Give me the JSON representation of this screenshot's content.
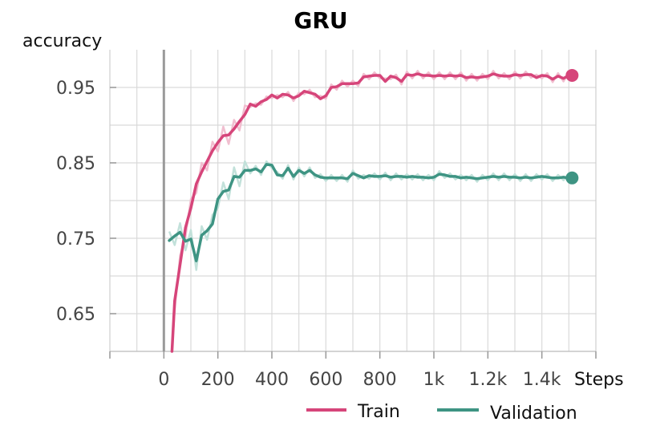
{
  "chart_data": {
    "type": "line",
    "title": "GRU",
    "xlabel": "Steps",
    "ylabel": "accuracy",
    "xlim": [
      -200,
      1600
    ],
    "ylim": [
      0.6,
      1.0
    ],
    "xticks": [
      0,
      200,
      400,
      600,
      800,
      1000,
      1200,
      1400
    ],
    "xtick_labels": [
      "0",
      "200",
      "400",
      "600",
      "800",
      "1k",
      "1.2k",
      "1.4k"
    ],
    "yticks": [
      0.65,
      0.75,
      0.85,
      0.95
    ],
    "ytick_labels": [
      "0.65",
      "0.75",
      "0.85",
      "0.95"
    ],
    "grid": true,
    "legend_position": "bottom",
    "series": [
      {
        "name": "Train",
        "color": "#d6457a",
        "raw_color": "#f1bfd0",
        "x": [
          30,
          40,
          60,
          80,
          100,
          120,
          140,
          160,
          180,
          200,
          220,
          240,
          260,
          280,
          300,
          320,
          340,
          360,
          380,
          400,
          420,
          440,
          460,
          480,
          500,
          520,
          540,
          560,
          580,
          600,
          620,
          640,
          660,
          680,
          700,
          720,
          740,
          760,
          780,
          800,
          820,
          840,
          860,
          880,
          900,
          920,
          940,
          960,
          980,
          1000,
          1020,
          1040,
          1060,
          1080,
          1100,
          1120,
          1140,
          1160,
          1180,
          1200,
          1220,
          1240,
          1260,
          1280,
          1300,
          1320,
          1340,
          1360,
          1380,
          1400,
          1420,
          1440,
          1460,
          1480,
          1500
        ],
        "values": [
          0.59,
          0.667,
          0.715,
          0.764,
          0.79,
          0.822,
          0.838,
          0.852,
          0.866,
          0.877,
          0.886,
          0.887,
          0.895,
          0.905,
          0.914,
          0.928,
          0.925,
          0.931,
          0.934,
          0.94,
          0.936,
          0.941,
          0.94,
          0.936,
          0.939,
          0.945,
          0.943,
          0.941,
          0.935,
          0.939,
          0.95,
          0.951,
          0.955,
          0.955,
          0.955,
          0.956,
          0.964,
          0.965,
          0.966,
          0.966,
          0.958,
          0.965,
          0.963,
          0.958,
          0.967,
          0.966,
          0.968,
          0.966,
          0.966,
          0.965,
          0.966,
          0.965,
          0.966,
          0.965,
          0.966,
          0.963,
          0.964,
          0.963,
          0.964,
          0.965,
          0.968,
          0.966,
          0.965,
          0.965,
          0.967,
          0.966,
          0.967,
          0.967,
          0.963,
          0.966,
          0.965,
          0.961,
          0.965,
          0.962,
          0.966
        ]
      },
      {
        "name": "Validation",
        "color": "#3e9483",
        "raw_color": "#c2e1da",
        "x": [
          20,
          40,
          60,
          80,
          100,
          120,
          140,
          160,
          180,
          200,
          220,
          240,
          260,
          280,
          300,
          320,
          340,
          360,
          380,
          400,
          420,
          440,
          460,
          480,
          500,
          520,
          540,
          560,
          580,
          600,
          620,
          640,
          660,
          680,
          700,
          720,
          740,
          760,
          780,
          800,
          820,
          840,
          860,
          880,
          900,
          920,
          940,
          960,
          980,
          1000,
          1020,
          1040,
          1060,
          1080,
          1100,
          1120,
          1140,
          1160,
          1180,
          1200,
          1220,
          1240,
          1260,
          1280,
          1300,
          1320,
          1340,
          1360,
          1380,
          1400,
          1420,
          1440,
          1460,
          1480,
          1500
        ],
        "values": [
          0.747,
          0.753,
          0.758,
          0.746,
          0.749,
          0.72,
          0.754,
          0.76,
          0.769,
          0.802,
          0.812,
          0.814,
          0.832,
          0.831,
          0.84,
          0.84,
          0.842,
          0.838,
          0.848,
          0.847,
          0.834,
          0.833,
          0.843,
          0.832,
          0.84,
          0.836,
          0.84,
          0.834,
          0.831,
          0.83,
          0.83,
          0.83,
          0.83,
          0.829,
          0.836,
          0.833,
          0.83,
          0.833,
          0.832,
          0.832,
          0.833,
          0.831,
          0.832,
          0.832,
          0.831,
          0.832,
          0.831,
          0.831,
          0.83,
          0.831,
          0.835,
          0.834,
          0.832,
          0.832,
          0.83,
          0.831,
          0.83,
          0.829,
          0.83,
          0.831,
          0.832,
          0.831,
          0.832,
          0.831,
          0.831,
          0.83,
          0.831,
          0.83,
          0.831,
          0.832,
          0.831,
          0.83,
          0.83,
          0.831,
          0.83
        ]
      }
    ]
  }
}
